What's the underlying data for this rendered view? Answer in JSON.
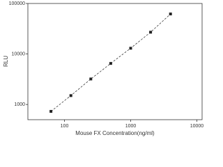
{
  "chart_data": {
    "type": "scatter",
    "x_label": "Mouse FX Concentration(ng/ml)",
    "y_label": "RLU",
    "x": [
      62.5,
      125,
      250,
      500,
      1000,
      2000,
      4000
    ],
    "values": [
      730,
      1500,
      3200,
      6500,
      13000,
      27000,
      62000
    ],
    "color": "#222222",
    "line_style": "dashed",
    "xscale": "log",
    "yscale": "log",
    "xlim": [
      28,
      12000
    ],
    "ylim": [
      500,
      100000
    ],
    "xticks": [
      100,
      1000,
      10000
    ],
    "yticks": [
      1000,
      10000,
      100000
    ]
  }
}
